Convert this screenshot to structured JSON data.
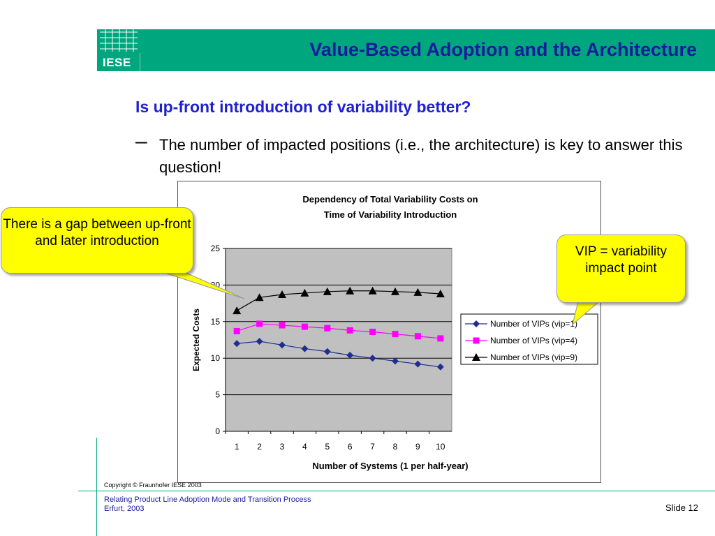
{
  "header": {
    "logo_text": "IESE",
    "title": "Value-Based Adoption and the Architecture"
  },
  "content": {
    "question": "Is up-front introduction of variability better?",
    "bullet_dash": "–",
    "bullet": "The number of impacted positions (i.e., the architecture) is key to answer this question!"
  },
  "callouts": {
    "left": "There is a gap between up-front and later introduction",
    "right": "VIP = variability impact point"
  },
  "footer": {
    "copyright": "Copyright © Fraunhofer IESE 2003",
    "line1": "Relating Product Line Adoption Mode and Transition Process",
    "line2": "Erfurt, 2003",
    "slide": "Slide 12"
  },
  "colors": {
    "accent": "#00a67e",
    "title": "#1a1a9e",
    "question": "#2020d0",
    "callout": "#ffff00",
    "plot_bg": "#c0c0c0"
  },
  "chart_data": {
    "type": "line",
    "title": "Dependency of Total Variability Costs on Time of Variability Introduction",
    "title_lines": [
      "Dependency of Total Variability Costs on",
      "Time of Variability Introduction"
    ],
    "xlabel": "Number of Systems (1 per half-year)",
    "ylabel": "Expected Costs",
    "x": [
      1,
      2,
      3,
      4,
      5,
      6,
      7,
      8,
      9,
      10
    ],
    "ylim": [
      0,
      25
    ],
    "yticks": [
      0,
      5,
      10,
      15,
      20,
      25
    ],
    "grid": "horizontal",
    "legend_position": "right",
    "series": [
      {
        "name": "Number of VIPs (vip=1)",
        "values": [
          12.0,
          12.3,
          11.8,
          11.3,
          10.9,
          10.4,
          10.0,
          9.6,
          9.2,
          8.8
        ],
        "color": "#1f2f8f",
        "marker": "diamond"
      },
      {
        "name": "Number of VIPs (vip=4)",
        "values": [
          13.7,
          14.7,
          14.5,
          14.3,
          14.1,
          13.8,
          13.6,
          13.3,
          13.0,
          12.7
        ],
        "color": "#ff00ff",
        "marker": "square"
      },
      {
        "name": "Number of VIPs (vip=9)",
        "values": [
          16.5,
          18.3,
          18.7,
          18.9,
          19.1,
          19.2,
          19.2,
          19.1,
          19.0,
          18.8
        ],
        "color": "#000000",
        "marker": "triangle"
      }
    ]
  }
}
